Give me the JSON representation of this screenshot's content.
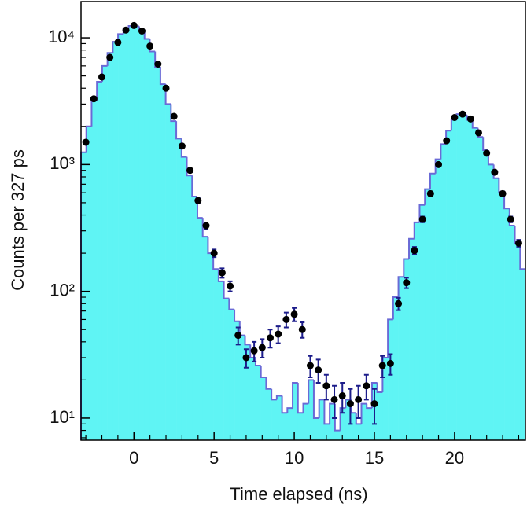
{
  "chart_data": {
    "type": "histogram",
    "xlabel": "Time elapsed (ns)",
    "ylabel": "Counts per 327 ps",
    "bins": [
      -3.3,
      -2.97,
      -2.64,
      -2.31,
      -1.98,
      -1.65,
      -1.32,
      -0.99,
      -0.66,
      -0.33,
      0,
      0.33,
      0.66,
      0.99,
      1.32,
      1.65,
      1.98,
      2.31,
      2.64,
      2.97,
      3.3,
      3.63,
      3.96,
      4.29,
      4.62,
      4.95,
      5.28,
      5.61,
      5.94,
      6.27,
      6.6,
      6.93,
      7.26,
      7.59,
      7.92,
      8.25,
      8.58,
      8.91,
      9.24,
      9.57,
      9.9,
      10.23,
      10.56,
      10.89,
      11.22,
      11.55,
      11.88,
      12.21,
      12.54,
      12.87,
      13.2,
      13.53,
      13.86,
      14.19,
      14.52,
      14.85,
      15.18,
      15.51,
      15.84,
      16.17,
      16.5,
      16.83,
      17.16,
      17.49,
      17.82,
      18.15,
      18.48,
      18.81,
      19.14,
      19.47,
      19.8,
      20.13,
      20.46,
      20.79,
      21.12,
      21.45,
      21.78,
      22.11,
      22.44,
      22.77,
      23.1,
      23.43,
      23.76,
      24.09,
      24.42
    ],
    "values": [
      1250,
      2000,
      3200,
      4500,
      6000,
      7600,
      9300,
      10700,
      11800,
      12400,
      12300,
      11600,
      9800,
      7800,
      5900,
      4300,
      3000,
      2200,
      1600,
      1150,
      820,
      560,
      380,
      270,
      200,
      150,
      120,
      88,
      72,
      58,
      45,
      38,
      30,
      26,
      21,
      17,
      14,
      15,
      11,
      12,
      19,
      11,
      13,
      20,
      10,
      14,
      9,
      13,
      8,
      12,
      14,
      11,
      9,
      13,
      12,
      19,
      16,
      30,
      60,
      90,
      130,
      180,
      260,
      350,
      480,
      640,
      850,
      1100,
      1450,
      1850,
      2250,
      2500,
      2450,
      2250,
      1950,
      1650,
      1300,
      1000,
      780,
      600,
      450,
      330,
      240,
      150
    ],
    "color": "#5ff4f4",
    "edgecolor": "#6a6ad6",
    "points": {
      "type": "errorbar",
      "x": [
        -3,
        -2.5,
        -2,
        -1.5,
        -1,
        -0.5,
        0,
        0.5,
        1,
        1.5,
        2,
        2.5,
        3,
        3.5,
        4,
        4.5,
        5,
        5.5,
        6,
        6.5,
        7,
        7.5,
        8,
        8.5,
        9,
        9.5,
        10,
        10.5,
        11,
        11.5,
        12,
        12.5,
        13,
        13.5,
        14,
        14.5,
        15,
        15.5,
        16,
        16.5,
        17,
        17.5,
        18,
        18.5,
        19,
        19.5,
        20,
        20.5,
        21,
        21.5,
        22,
        22.5,
        23,
        23.5,
        24
      ],
      "values": [
        1500,
        3300,
        4900,
        7000,
        9200,
        11500,
        12500,
        11300,
        8600,
        6200,
        4000,
        2400,
        1400,
        900,
        520,
        330,
        200,
        140,
        110,
        45,
        30,
        34,
        36,
        43,
        46,
        60,
        66,
        50,
        26,
        24,
        18,
        14,
        15,
        13,
        14,
        18,
        13,
        26,
        27,
        80,
        117,
        210,
        370,
        590,
        1000,
        1540,
        2350,
        2500,
        2290,
        1780,
        1230,
        870,
        590,
        370,
        240
      ],
      "errors": [
        39,
        57,
        70,
        84,
        96,
        107,
        112,
        106,
        93,
        79,
        63,
        49,
        37,
        30,
        23,
        18,
        14,
        12,
        10,
        7,
        5,
        6,
        6,
        7,
        7,
        8,
        8,
        7,
        5,
        5,
        4,
        4,
        4,
        4,
        4,
        4,
        4,
        5,
        5,
        9,
        11,
        14,
        19,
        24,
        32,
        39,
        48,
        50,
        48,
        42,
        35,
        29,
        24,
        19,
        15
      ],
      "color": "#000000",
      "errorcolor": "#1c1c8a"
    },
    "xlim": [
      -3.3,
      24.42
    ],
    "ylim": [
      6.7,
      19300
    ],
    "log_y": true,
    "xticks": [
      0,
      5,
      10,
      15,
      20
    ],
    "yticks": [
      {
        "value": 10,
        "label": "10¹"
      },
      {
        "value": 100,
        "label": "10²"
      },
      {
        "value": 1000,
        "label": "10³"
      },
      {
        "value": 10000,
        "label": "10⁴"
      }
    ],
    "xminorticks": [
      -3,
      -2,
      -1,
      1,
      2,
      3,
      4,
      6,
      7,
      8,
      9,
      11,
      12,
      13,
      14,
      16,
      17,
      18,
      19,
      21,
      22,
      23,
      24
    ],
    "yminorticks": [
      7,
      8,
      9,
      20,
      30,
      40,
      50,
      60,
      70,
      80,
      90,
      200,
      300,
      400,
      500,
      600,
      700,
      800,
      900,
      2000,
      3000,
      4000,
      5000,
      6000,
      7000,
      8000,
      9000
    ]
  }
}
